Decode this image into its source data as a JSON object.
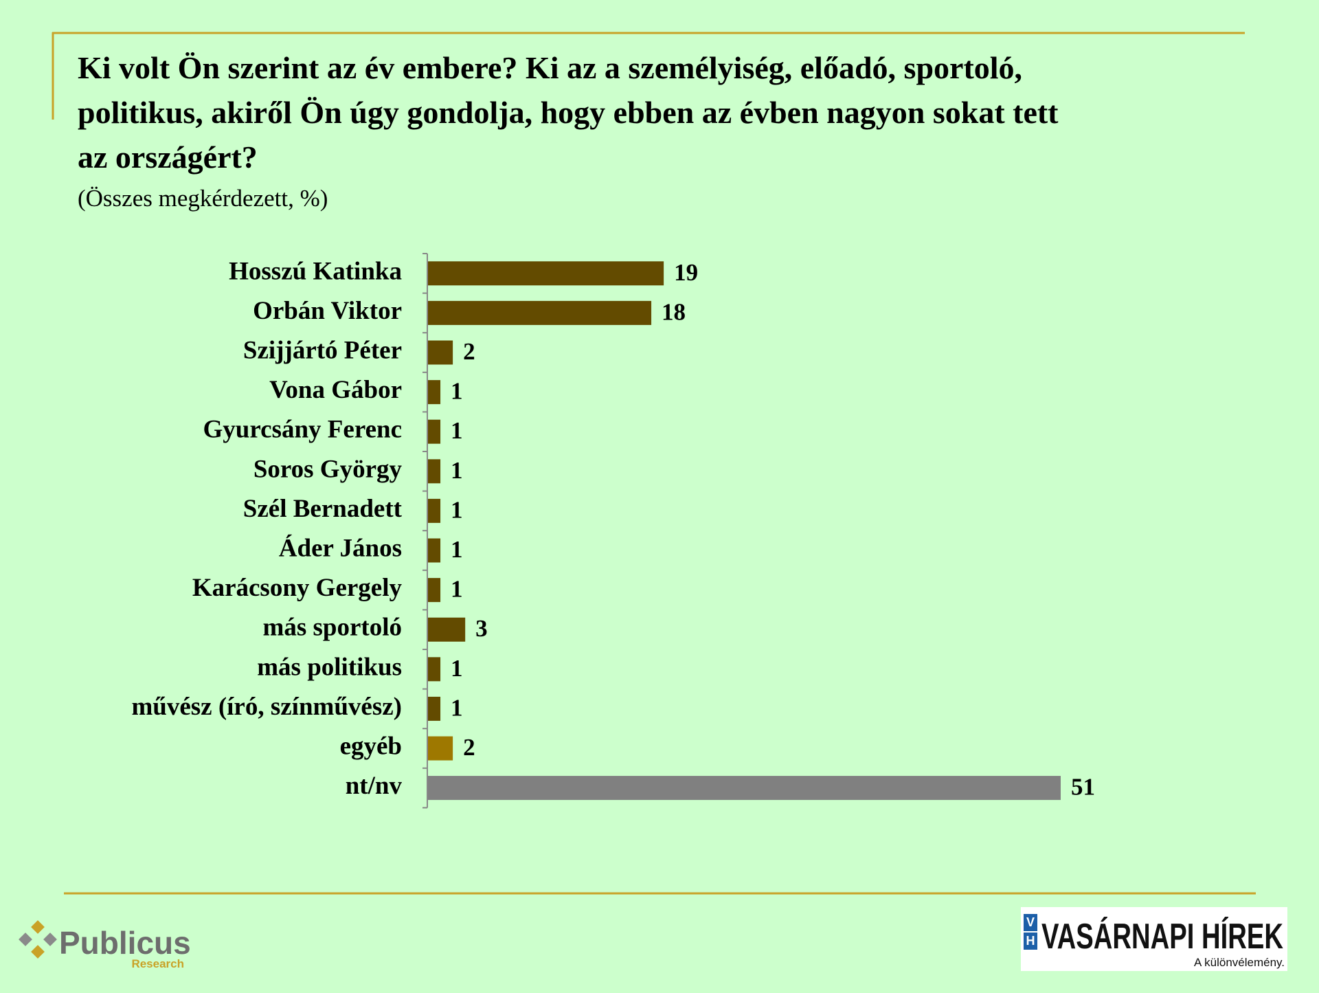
{
  "chart_data": {
    "type": "bar",
    "orientation": "horizontal",
    "title": [
      "Ki volt Ön szerint az év embere? Ki az a személyiség, előadó, sportoló,",
      "politikus, akiről Ön úgy gondolja, hogy ebben az évben nagyon sokat tett",
      "az országért?"
    ],
    "subtitle": "(Összes megkérdezett, %)",
    "categories": [
      "Hosszú Katinka",
      "Orbán Viktor",
      "Szijjártó Péter",
      "Vona Gábor",
      "Gyurcsány Ferenc",
      "Soros György",
      "Szél Bernadett",
      "Áder János",
      "Karácsony Gergely",
      "más sportoló",
      "más politikus",
      "művész (író, színművész)",
      "egyéb",
      "nt/nv"
    ],
    "values": [
      19,
      18,
      2,
      1,
      1,
      1,
      1,
      1,
      1,
      3,
      1,
      1,
      2,
      51
    ],
    "colors": [
      "#634b00",
      "#634b00",
      "#634b00",
      "#634b00",
      "#634b00",
      "#634b00",
      "#634b00",
      "#634b00",
      "#634b00",
      "#634b00",
      "#634b00",
      "#634b00",
      "#9e7800",
      "#808080"
    ]
  },
  "footer": {
    "left_logo": "Publicus",
    "left_sub": "Research",
    "right_mark_top": "V",
    "right_mark_bottom": "H",
    "right_logo": "VASÁRNAPI HÍREK",
    "right_tagline": "A különvélemény."
  }
}
